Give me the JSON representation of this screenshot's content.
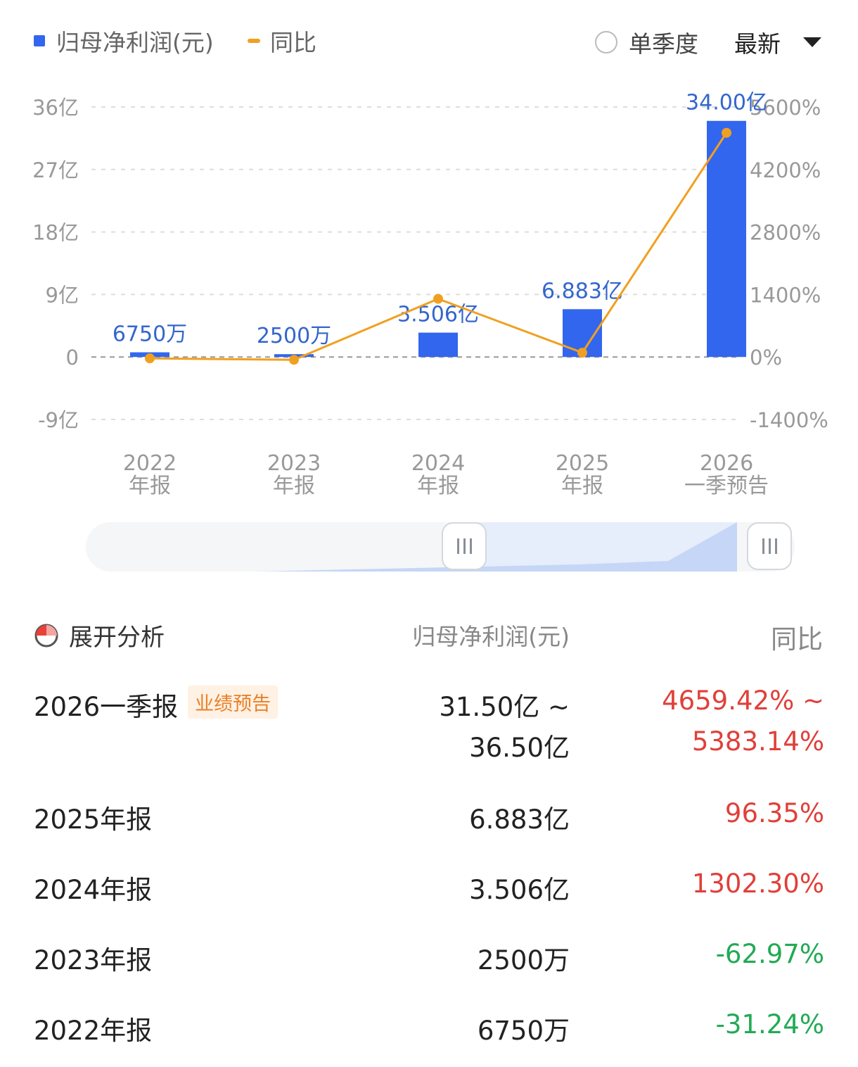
{
  "legend": {
    "net_label": "归母净利润(元)",
    "yoy_label": "同比",
    "quarter_toggle_label": "单季度",
    "period_select_label": "最新"
  },
  "colors": {
    "bar": "#3366ee",
    "line": "#f0a020",
    "positive": "#e0403a",
    "negative": "#22aa55"
  },
  "chart_data": {
    "type": "bar",
    "categories": [
      "2022\n年报",
      "2023\n年报",
      "2024\n年报",
      "2025\n年报",
      "2026\n一季预告"
    ],
    "series": [
      {
        "name": "归母净利润(元)",
        "type": "bar",
        "axis": "left",
        "values": [
          0.675,
          0.25,
          3.506,
          6.883,
          34.0
        ],
        "unit": "亿"
      },
      {
        "name": "同比",
        "type": "line",
        "axis": "right",
        "values": [
          -31.24,
          -62.97,
          1302.3,
          96.35,
          5021.28
        ],
        "unit": "%"
      }
    ],
    "bar_labels": [
      "6750万",
      "2500万",
      "3.506亿",
      "6.883亿",
      "34.00亿"
    ],
    "y_left": {
      "ticks": [
        "36亿",
        "27亿",
        "18亿",
        "9亿",
        "0",
        "-9亿"
      ],
      "range": [
        -9,
        36
      ]
    },
    "y_right": {
      "ticks": [
        "5600%",
        "4200%",
        "2800%",
        "1400%",
        "0%",
        "-1400%"
      ],
      "range": [
        -1400,
        5600
      ]
    },
    "grid": true,
    "legend_position": "top-left"
  },
  "slider": {
    "start": 0.5,
    "end": 1.0
  },
  "table": {
    "expand_label": "展开分析",
    "col_net": "归母净利润(元)",
    "col_yoy": "同比",
    "rows": [
      {
        "period": "2026一季报",
        "badge": "业绩预告",
        "net_lines": [
          "31.50亿 ~",
          "36.50亿"
        ],
        "yoy_lines": [
          "4659.42% ~",
          "5383.14%"
        ],
        "trend": "up"
      },
      {
        "period": "2025年报",
        "net_lines": [
          "6.883亿"
        ],
        "yoy_lines": [
          "96.35%"
        ],
        "trend": "up"
      },
      {
        "period": "2024年报",
        "net_lines": [
          "3.506亿"
        ],
        "yoy_lines": [
          "1302.30%"
        ],
        "trend": "up"
      },
      {
        "period": "2023年报",
        "net_lines": [
          "2500万"
        ],
        "yoy_lines": [
          "-62.97%"
        ],
        "trend": "down"
      },
      {
        "period": "2022年报",
        "net_lines": [
          "6750万"
        ],
        "yoy_lines": [
          "-31.24%"
        ],
        "trend": "down"
      }
    ]
  }
}
